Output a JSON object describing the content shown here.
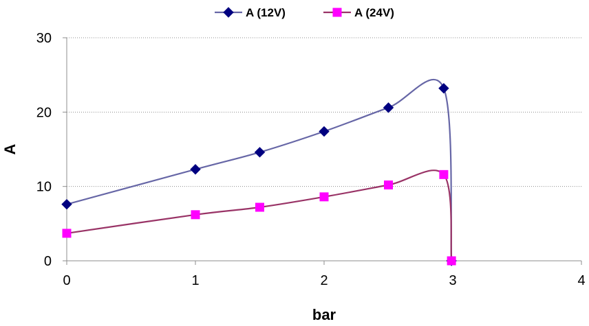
{
  "chart_data": {
    "type": "line",
    "title": "",
    "xlabel": "bar",
    "ylabel": "A",
    "xlim": [
      0,
      4
    ],
    "ylim": [
      0,
      30
    ],
    "x_ticks": [
      "0",
      "1",
      "2",
      "3",
      "4"
    ],
    "y_ticks": [
      "0",
      "10",
      "20",
      "30"
    ],
    "grid": "horizontal dotted",
    "legend": "top",
    "smooth": true,
    "series": [
      {
        "name": "A (12V)",
        "color": "#000080",
        "line_color": "#6666A6",
        "marker": "diamond",
        "points": [
          {
            "x": 0,
            "y": 7.6
          },
          {
            "x": 1,
            "y": 12.3
          },
          {
            "x": 1.5,
            "y": 14.6
          },
          {
            "x": 2,
            "y": 17.4
          },
          {
            "x": 2.5,
            "y": 20.6
          },
          {
            "x": 2.93,
            "y": 23.2
          },
          {
            "x": 2.99,
            "y": 0
          }
        ]
      },
      {
        "name": "A (24V)",
        "color": "#FF00FF",
        "line_color": "#993366",
        "marker": "square",
        "points": [
          {
            "x": 0,
            "y": 3.7
          },
          {
            "x": 1,
            "y": 6.2
          },
          {
            "x": 1.5,
            "y": 7.2
          },
          {
            "x": 2,
            "y": 8.6
          },
          {
            "x": 2.5,
            "y": 10.2
          },
          {
            "x": 2.93,
            "y": 11.6
          },
          {
            "x": 2.99,
            "y": 0
          }
        ]
      }
    ]
  }
}
